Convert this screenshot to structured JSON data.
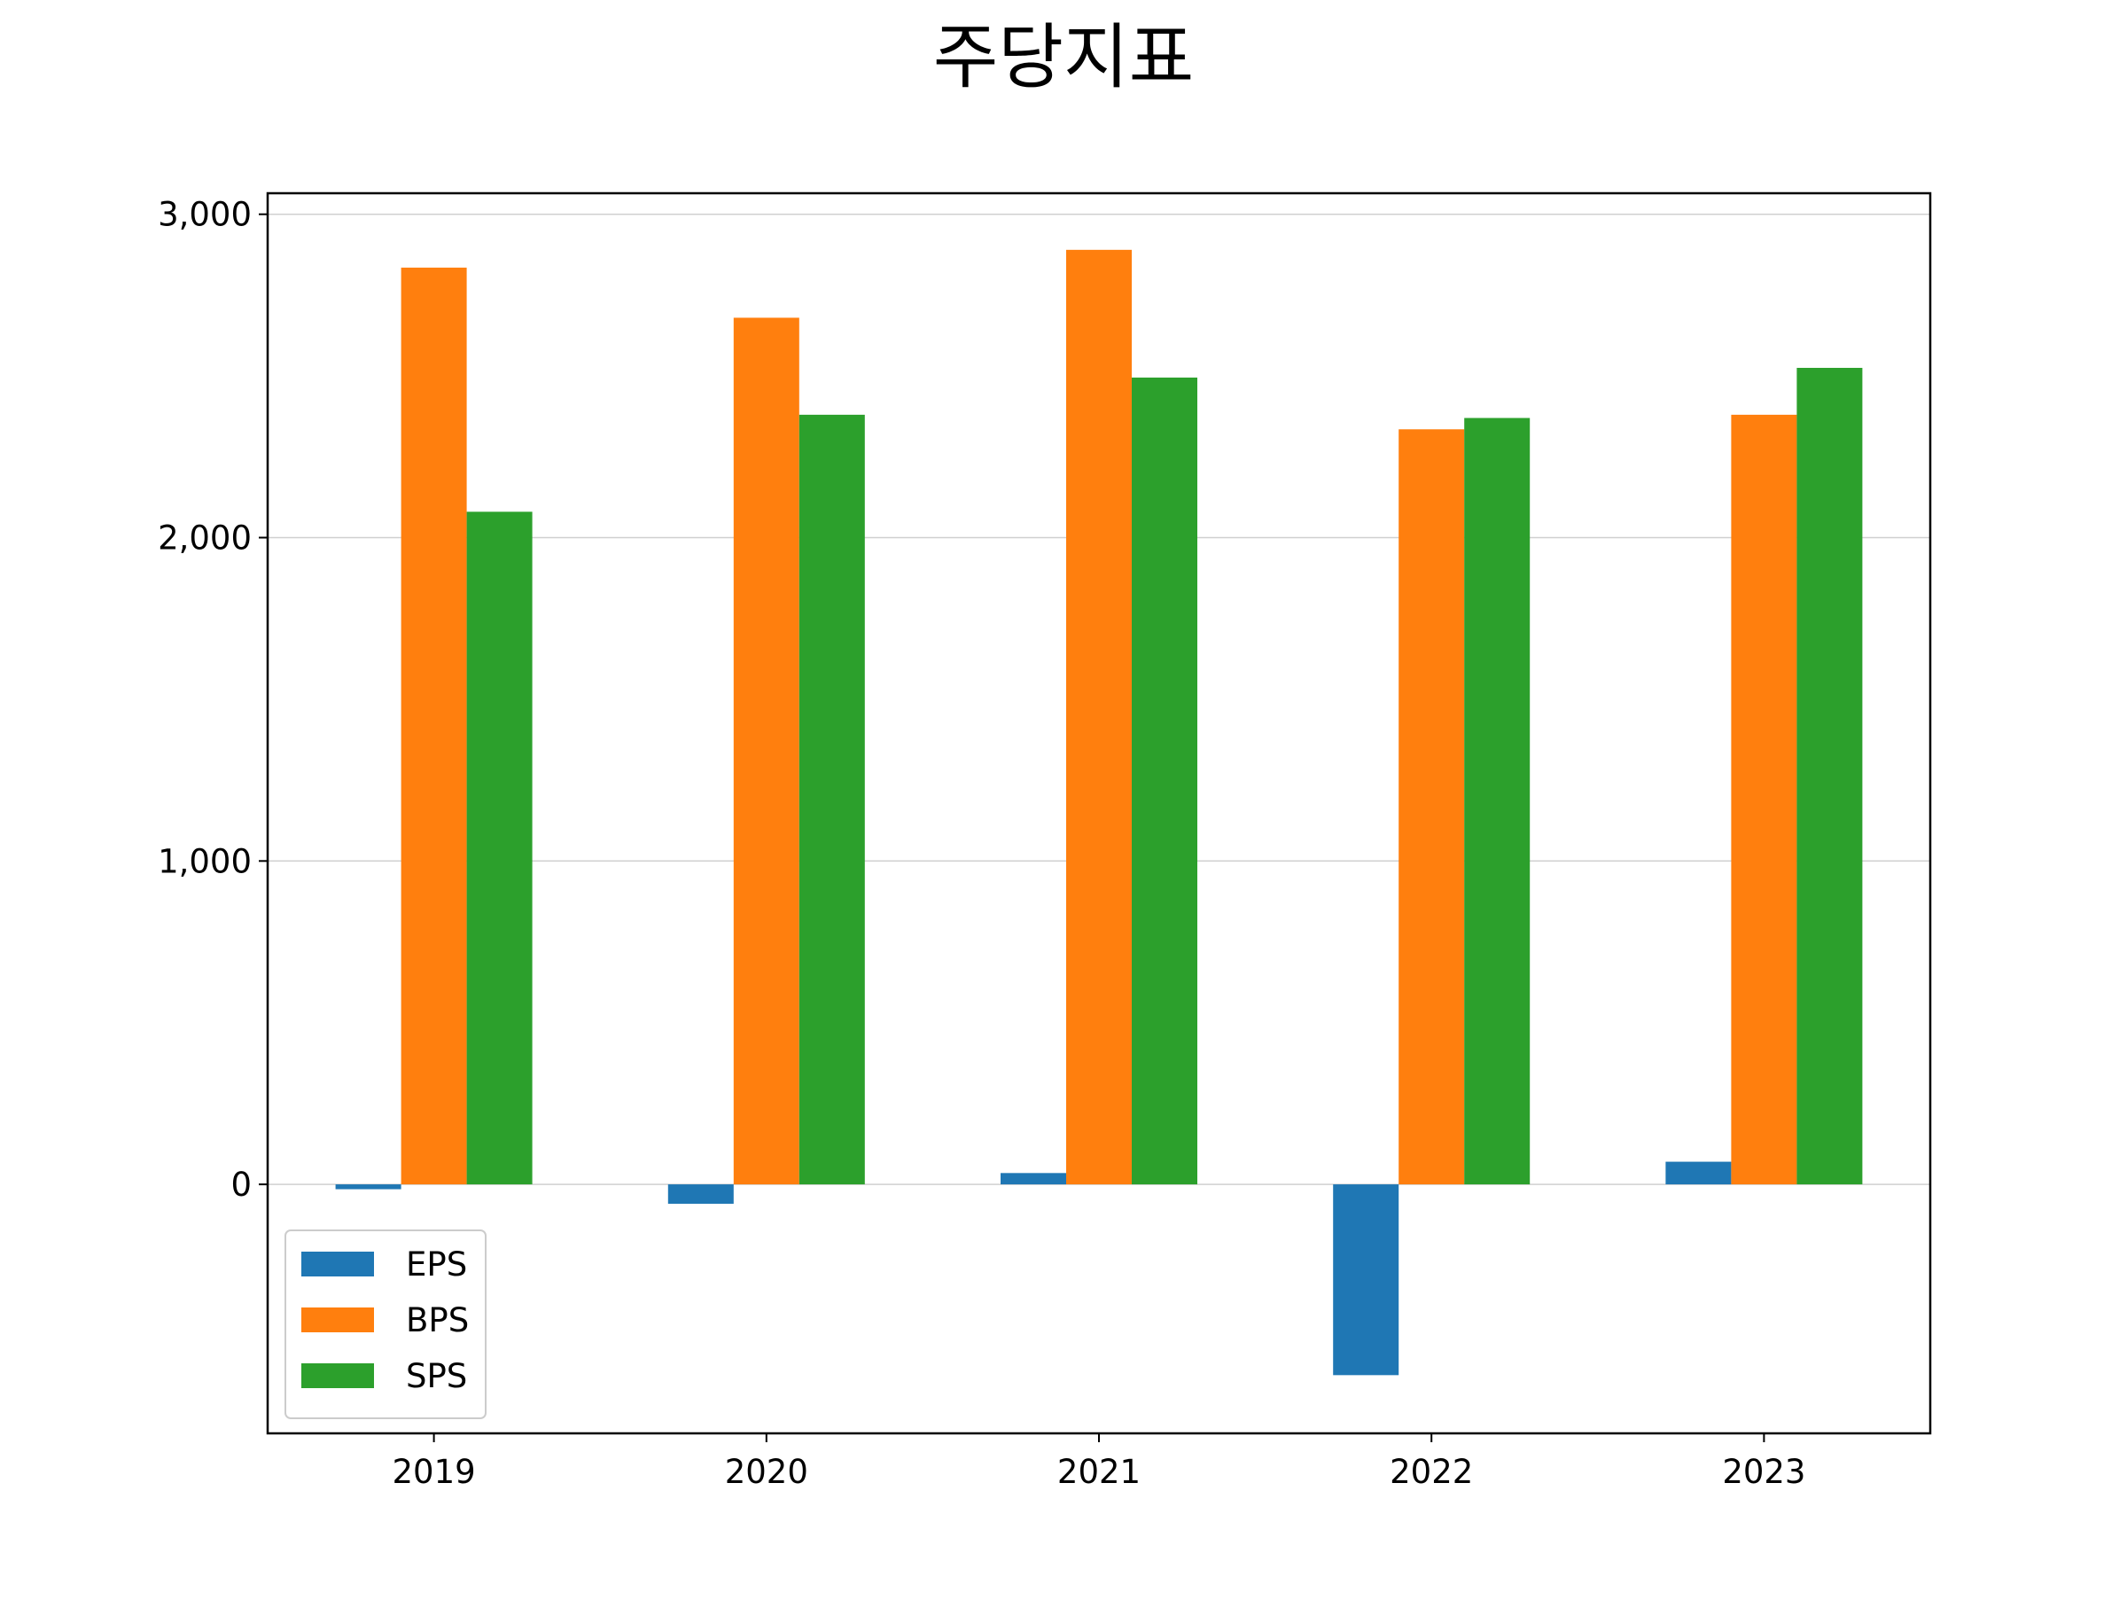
{
  "chart_data": {
    "type": "bar",
    "title": "주당지표",
    "xlabel": "",
    "ylabel": "",
    "categories": [
      "2019",
      "2020",
      "2021",
      "2022",
      "2023"
    ],
    "series": [
      {
        "name": "EPS",
        "color": "#1f77b4",
        "values": [
          -15,
          -60,
          35,
          -590,
          70
        ]
      },
      {
        "name": "BPS",
        "color": "#ff7f0e",
        "values": [
          2835,
          2680,
          2890,
          2335,
          2380
        ]
      },
      {
        "name": "SPS",
        "color": "#2ca02c",
        "values": [
          2080,
          2380,
          2495,
          2370,
          2525
        ]
      }
    ],
    "ylim": [
      -770,
      3065
    ],
    "yticks": [
      0,
      1000,
      2000,
      3000
    ],
    "ytick_labels": [
      "0",
      "1,000",
      "2,000",
      "3,000"
    ],
    "grid": {
      "y": true,
      "x": false
    },
    "legend": {
      "position": "lower-left"
    }
  }
}
